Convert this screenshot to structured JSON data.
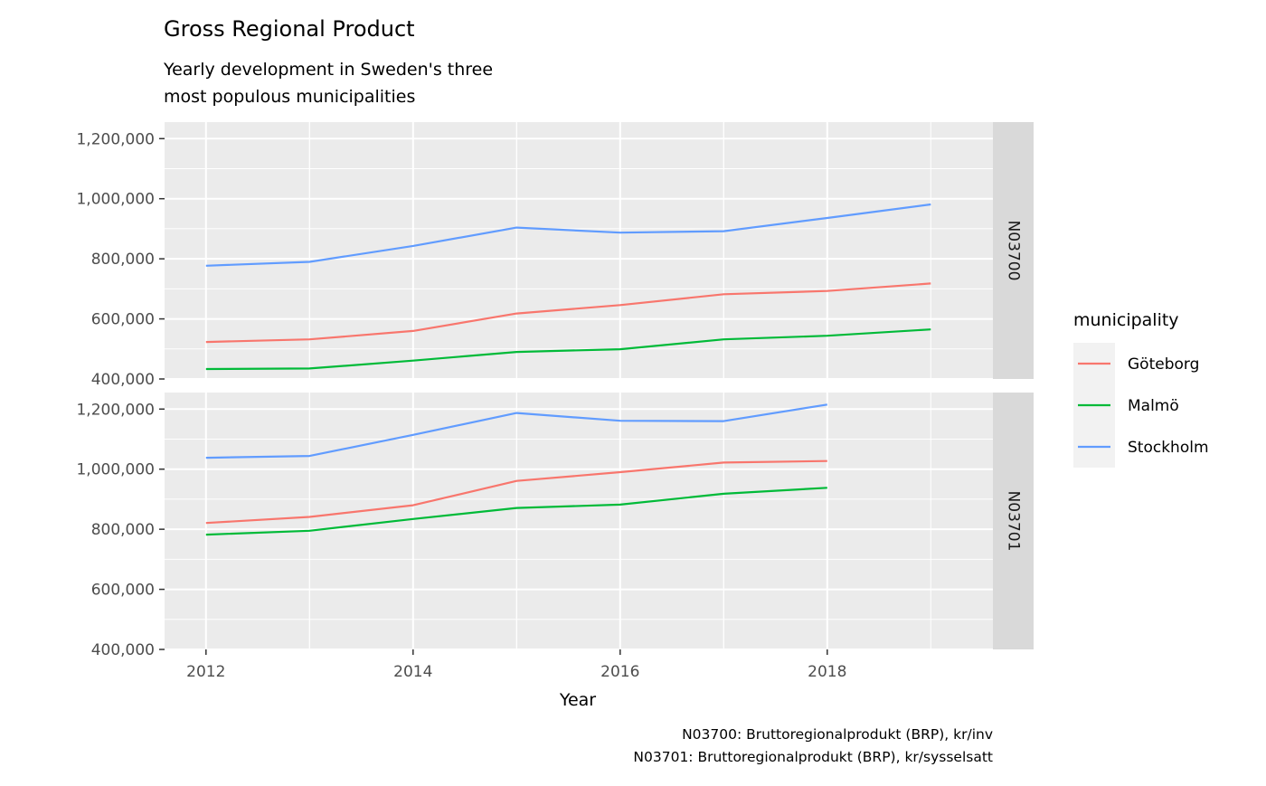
{
  "chart_data": {
    "type": "line",
    "title": "Gross Regional Product",
    "subtitle": [
      "Yearly development in Sweden's three",
      "most populous municipalities"
    ],
    "xlabel": "Year",
    "ylabel": "",
    "x_ticks": [
      2012,
      2014,
      2016,
      2018
    ],
    "xlim": [
      2011.6,
      2019.6
    ],
    "y_ticks": [
      400000,
      600000,
      800000,
      1000000,
      1200000
    ],
    "ylim": [
      400000,
      1255000
    ],
    "grid": true,
    "legend": {
      "title": "municipality",
      "position": "right",
      "entries": [
        "Göteborg",
        "Malmö",
        "Stockholm"
      ]
    },
    "colors": {
      "Göteborg": "#F8766D",
      "Malmö": "#00BA38",
      "Stockholm": "#619CFF"
    },
    "caption": [
      "N03700: Bruttoregionalprodukt (BRP), kr/inv",
      "N03701: Bruttoregionalprodukt (BRP), kr/sysselsatt"
    ],
    "panels": [
      {
        "strip": "N03700",
        "series": [
          {
            "name": "Göteborg",
            "x": [
              2012,
              2013,
              2014,
              2015,
              2016,
              2017,
              2018,
              2019
            ],
            "values": [
              523000,
              532000,
              560000,
              618000,
              646000,
              682000,
              693000,
              718000
            ]
          },
          {
            "name": "Malmö",
            "x": [
              2012,
              2013,
              2014,
              2015,
              2016,
              2017,
              2018,
              2019
            ],
            "values": [
              433000,
              435000,
              461000,
              490000,
              499000,
              532000,
              544000,
              565000
            ]
          },
          {
            "name": "Stockholm",
            "x": [
              2012,
              2013,
              2014,
              2015,
              2016,
              2017,
              2018,
              2019
            ],
            "values": [
              777000,
              790000,
              843000,
              904000,
              887000,
              892000,
              936000,
              981000
            ]
          }
        ]
      },
      {
        "strip": "N03701",
        "series": [
          {
            "name": "Göteborg",
            "x": [
              2012,
              2013,
              2014,
              2015,
              2016,
              2017,
              2018
            ],
            "values": [
              821000,
              841000,
              880000,
              961000,
              990000,
              1022000,
              1027000
            ]
          },
          {
            "name": "Malmö",
            "x": [
              2012,
              2013,
              2014,
              2015,
              2016,
              2017,
              2018
            ],
            "values": [
              782000,
              795000,
              834000,
              871000,
              882000,
              918000,
              938000
            ]
          },
          {
            "name": "Stockholm",
            "x": [
              2012,
              2013,
              2014,
              2015,
              2016,
              2017,
              2018
            ],
            "values": [
              1038000,
              1044000,
              1114000,
              1187000,
              1161000,
              1160000,
              1215000
            ]
          }
        ]
      }
    ]
  }
}
